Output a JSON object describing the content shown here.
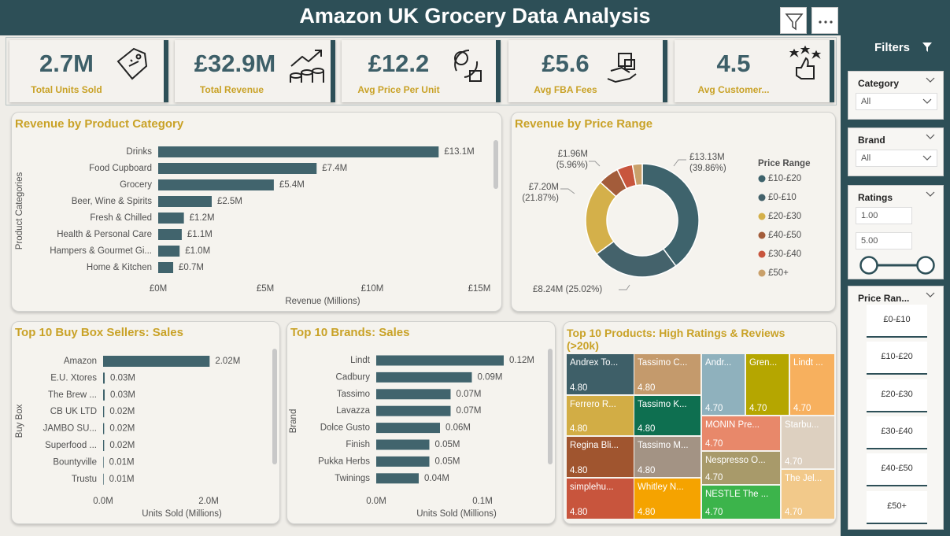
{
  "header": {
    "title": "Amazon UK Grocery Data Analysis"
  },
  "kpis": [
    {
      "value": "2.7M",
      "label": "Total Units Sold"
    },
    {
      "value": "£32.9M",
      "label": "Total Revenue"
    },
    {
      "value": "£12.2",
      "label": "Avg Price Per Unit"
    },
    {
      "value": "£5.6",
      "label": "Avg FBA Fees"
    },
    {
      "value": "4.5",
      "label": "Avg Customer..."
    }
  ],
  "chart_data": [
    {
      "type": "bar",
      "title": "Revenue by Product Category",
      "x_label": "Revenue (Millions)",
      "y_label": "Product Categories",
      "categories": [
        "Drinks",
        "Food Cupboard",
        "Grocery",
        "Beer, Wine & Spirits",
        "Fresh & Chilled",
        "Health & Personal Care",
        "Hampers & Gourmet Gi...",
        "Home & Kitchen"
      ],
      "values": [
        13.1,
        7.4,
        5.4,
        2.5,
        1.2,
        1.1,
        1.0,
        0.7
      ],
      "value_labels": [
        "£13.1M",
        "£7.4M",
        "£5.4M",
        "£2.5M",
        "£1.2M",
        "£1.1M",
        "£1.0M",
        "£0.7M"
      ],
      "color": "#41646d",
      "xlim": [
        0,
        15.5
      ],
      "xticks": [
        {
          "value": 0,
          "label": "£0M"
        },
        {
          "value": 5,
          "label": "£5M"
        },
        {
          "value": 10,
          "label": "£10M"
        },
        {
          "value": 15,
          "label": "£15M"
        }
      ]
    },
    {
      "type": "donut",
      "title": "Revenue by Price Range",
      "legend_title": "Price Range",
      "categories": [
        "£10-£20",
        "£0-£10",
        "£20-£30",
        "£40-£50",
        "£30-£40",
        "£50+"
      ],
      "values": [
        13.13,
        8.24,
        7.2,
        1.96,
        1.48,
        0.92
      ],
      "value_labels": [
        "£13.13M (39.86%)",
        "£8.24M (25.02%)",
        "£7.20M (21.87%)",
        "£1.96M (5.96%)",
        null,
        null
      ],
      "colors": [
        "#3e636c",
        "#44626b",
        "#d4b04a",
        "#a35c3a",
        "#c8553d",
        "#c9a06a"
      ]
    },
    {
      "type": "bar",
      "title": "Top 10 Buy Box Sellers: Sales",
      "x_label": "Units Sold (Millions)",
      "y_label": "Buy Box",
      "categories": [
        "Amazon",
        "E.U. Xtores",
        "The Brew ...",
        "CB UK LTD",
        "JAMBO SU...",
        "Superfood ...",
        "Bountyville",
        "Trustu"
      ],
      "values": [
        2.02,
        0.03,
        0.03,
        0.02,
        0.02,
        0.02,
        0.01,
        0.01
      ],
      "value_labels": [
        "2.02M",
        "0.03M",
        "0.03M",
        "0.02M",
        "0.02M",
        "0.02M",
        "0.01M",
        "0.01M"
      ],
      "color": "#41646d",
      "xlim": [
        0,
        3
      ],
      "xticks": [
        {
          "value": 0,
          "label": "0.0M"
        },
        {
          "value": 2,
          "label": "2.0M"
        }
      ]
    },
    {
      "type": "bar",
      "title": "Top 10 Brands: Sales",
      "x_label": "Units Sold (Millions)",
      "y_label": "Brand",
      "categories": [
        "Lindt",
        "Cadbury",
        "Tassimo",
        "Lavazza",
        "Dolce Gusto",
        "Finish",
        "Pukka Herbs",
        "Twinings"
      ],
      "values": [
        0.12,
        0.09,
        0.07,
        0.07,
        0.06,
        0.05,
        0.05,
        0.04
      ],
      "value_labels": [
        "0.12M",
        "0.09M",
        "0.07M",
        "0.07M",
        "0.06M",
        "0.05M",
        "0.05M",
        "0.04M"
      ],
      "color": "#41646d",
      "xlim": [
        0,
        0.15
      ],
      "xticks": [
        {
          "value": 0,
          "label": "0.0M"
        },
        {
          "value": 0.1,
          "label": "0.1M"
        }
      ]
    },
    {
      "type": "treemap",
      "title": "Top 10 Products: High Ratings & Reviews (>20k)",
      "categories": [
        "Andrex To...",
        "Ferrero R...",
        "Regina Bli...",
        "simplehu...",
        "Tassimo C...",
        "Tassimo K...",
        "Tassimo M...",
        "Whitley N...",
        "Andr...",
        "Gren...",
        "Lindt ...",
        "MONIN Pre...",
        "Starbu...",
        "Nespresso O...",
        "The Jel...",
        "NESTLE The ..."
      ],
      "values": [
        4.8,
        4.8,
        4.8,
        4.8,
        4.8,
        4.8,
        4.8,
        4.8,
        4.7,
        4.7,
        4.7,
        4.7,
        4.7,
        4.7,
        4.7,
        4.7
      ],
      "value_labels": [
        "4.80",
        "4.80",
        "4.80",
        "4.80",
        "4.80",
        "4.80",
        "4.80",
        "4.80",
        "4.70",
        "4.70",
        "4.70",
        "4.70",
        "4.70",
        "4.70",
        "4.70",
        "4.70"
      ],
      "colors": [
        "#3e5f68",
        "#d2ad45",
        "#a0552f",
        "#c8553d",
        "#c49a6c",
        "#0e6f50",
        "#a39384",
        "#f5a300",
        "#8fb1bd",
        "#b5a600",
        "#f7b05e",
        "#e8886a",
        "#ddd0c0",
        "#a89a6a",
        "#f2c98a",
        "#3cb44b"
      ]
    }
  ],
  "filters": {
    "title": "Filters",
    "category": {
      "label": "Category",
      "value": "All"
    },
    "brand": {
      "label": "Brand",
      "value": "All"
    },
    "ratings": {
      "label": "Ratings",
      "min": "1.00",
      "max": "5.00"
    },
    "price_range": {
      "label": "Price Ran...",
      "options": [
        "£0-£10",
        "£10-£20",
        "£20-£30",
        "£30-£40",
        "£40-£50",
        "£50+"
      ]
    }
  }
}
